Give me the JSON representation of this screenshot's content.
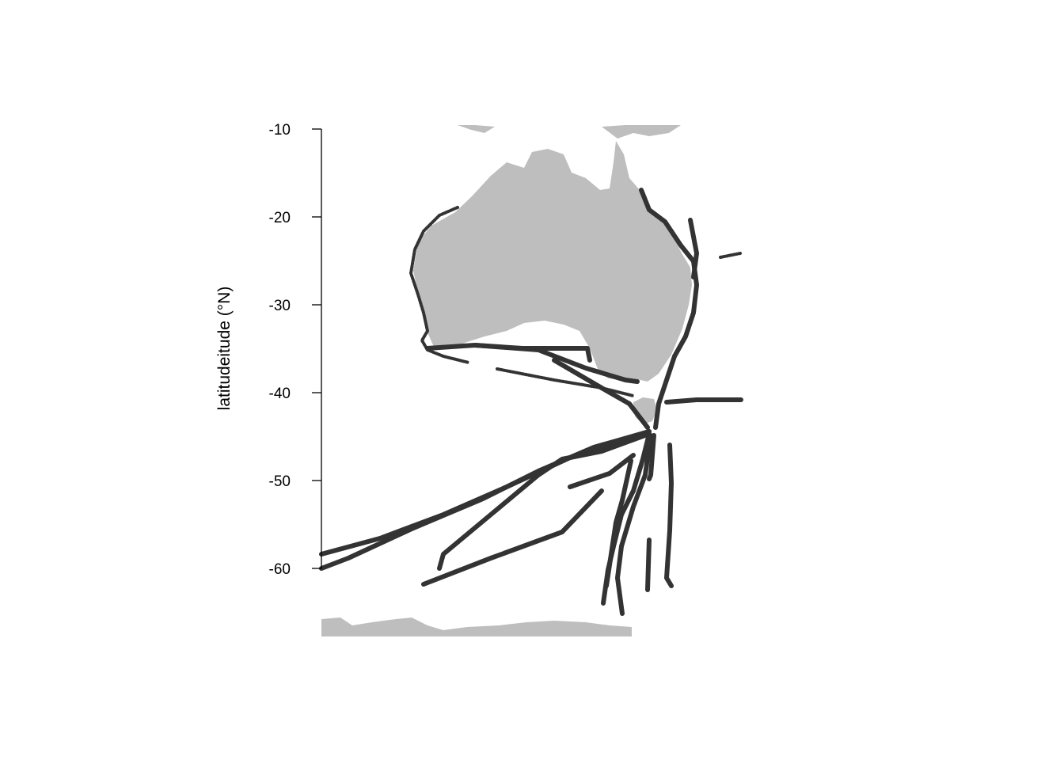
{
  "axis": {
    "ylabel": "latitudeitude (°N)",
    "ylim": [
      -60,
      -10
    ],
    "yticks": [
      {
        "value": -10,
        "label": "-10"
      },
      {
        "value": -20,
        "label": "-20"
      },
      {
        "value": -30,
        "label": "-30"
      },
      {
        "value": -40,
        "label": "-40"
      },
      {
        "value": -50,
        "label": "-50"
      },
      {
        "value": -60,
        "label": "-60"
      }
    ]
  },
  "colors": {
    "land": "#bebebe",
    "track": "#333333",
    "axis": "#000000"
  }
}
